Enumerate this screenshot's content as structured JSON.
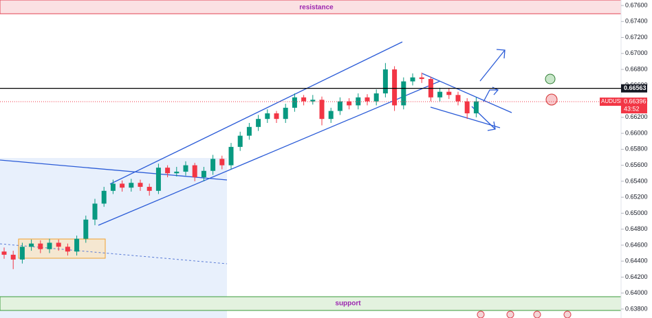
{
  "chart_data": {
    "type": "candlestick",
    "symbol": "AUDUSD",
    "countdown": "43:52",
    "resistance_label": "resistance",
    "support_label": "support",
    "reference_price": 0.66563,
    "last_price": 0.66396,
    "up_color": "#089981",
    "down_color": "#f23645",
    "ylim": [
      0.63688,
      0.67669
    ],
    "yticks": [
      {
        "value": 0.676,
        "label": "0.67600"
      },
      {
        "value": 0.674,
        "label": "0.67400"
      },
      {
        "value": 0.672,
        "label": "0.67200"
      },
      {
        "value": 0.67,
        "label": "0.67000"
      },
      {
        "value": 0.668,
        "label": "0.66800"
      },
      {
        "value": 0.666,
        "label": "0.66600"
      },
      {
        "value": 0.664,
        "label": "0.66400"
      },
      {
        "value": 0.662,
        "label": "0.66200"
      },
      {
        "value": 0.66,
        "label": "0.66000"
      },
      {
        "value": 0.658,
        "label": "0.65800"
      },
      {
        "value": 0.656,
        "label": "0.65600"
      },
      {
        "value": 0.654,
        "label": "0.65400"
      },
      {
        "value": 0.652,
        "label": "0.65200"
      },
      {
        "value": 0.65,
        "label": "0.65000"
      },
      {
        "value": 0.648,
        "label": "0.64800"
      },
      {
        "value": 0.646,
        "label": "0.64600"
      },
      {
        "value": 0.644,
        "label": "0.64400"
      },
      {
        "value": 0.642,
        "label": "0.64200"
      },
      {
        "value": 0.64,
        "label": "0.64000"
      },
      {
        "value": 0.638,
        "label": "0.63800"
      }
    ],
    "open": [
      0.6452,
      0.6448,
      0.6442,
      0.6458,
      0.6462,
      0.6455,
      0.6463,
      0.6458,
      0.6452,
      0.6468,
      0.6492,
      0.6512,
      0.6528,
      0.6537,
      0.6532,
      0.6538,
      0.6533,
      0.6528,
      0.6557,
      0.655,
      0.6552,
      0.656,
      0.6545,
      0.6553,
      0.6568,
      0.656,
      0.6583,
      0.6597,
      0.6608,
      0.6618,
      0.6625,
      0.6618,
      0.6632,
      0.6645,
      0.664,
      0.6642,
      0.6618,
      0.6628,
      0.664,
      0.6635,
      0.6645,
      0.664,
      0.665,
      0.668,
      0.6635,
      0.6665,
      0.667,
      0.6668,
      0.6645,
      0.6652,
      0.6648,
      0.664,
      0.6625
    ],
    "high": [
      0.6457,
      0.6453,
      0.6463,
      0.6467,
      0.6466,
      0.6468,
      0.6467,
      0.6462,
      0.6472,
      0.6497,
      0.6518,
      0.6533,
      0.6542,
      0.6541,
      0.6543,
      0.6542,
      0.6537,
      0.6562,
      0.656,
      0.6558,
      0.6565,
      0.6563,
      0.6558,
      0.6573,
      0.6572,
      0.6588,
      0.6602,
      0.6613,
      0.6623,
      0.663,
      0.6628,
      0.6637,
      0.665,
      0.6648,
      0.6648,
      0.6646,
      0.6632,
      0.6645,
      0.6644,
      0.665,
      0.6649,
      0.6655,
      0.6688,
      0.6684,
      0.667,
      0.6675,
      0.6676,
      0.6671,
      0.6657,
      0.6656,
      0.6652,
      0.6644,
      0.6645
    ],
    "low": [
      0.6443,
      0.643,
      0.6437,
      0.6453,
      0.645,
      0.645,
      0.6453,
      0.6447,
      0.6447,
      0.6463,
      0.6485,
      0.6508,
      0.6524,
      0.6527,
      0.6527,
      0.6528,
      0.6522,
      0.6524,
      0.6545,
      0.6546,
      0.6547,
      0.654,
      0.654,
      0.6548,
      0.6555,
      0.6555,
      0.6578,
      0.6592,
      0.6603,
      0.6613,
      0.6613,
      0.6613,
      0.6627,
      0.6635,
      0.6636,
      0.661,
      0.6613,
      0.6623,
      0.663,
      0.663,
      0.6635,
      0.6635,
      0.6645,
      0.6628,
      0.663,
      0.666,
      0.6663,
      0.664,
      0.664,
      0.6643,
      0.6635,
      0.6618,
      0.662
    ],
    "close": [
      0.6448,
      0.6442,
      0.6458,
      0.6462,
      0.6455,
      0.6463,
      0.6458,
      0.6452,
      0.6468,
      0.6492,
      0.6512,
      0.6528,
      0.6537,
      0.6532,
      0.6538,
      0.6533,
      0.6528,
      0.6557,
      0.655,
      0.6552,
      0.656,
      0.6545,
      0.6553,
      0.6568,
      0.656,
      0.6583,
      0.6597,
      0.6608,
      0.6618,
      0.6625,
      0.6618,
      0.6632,
      0.6645,
      0.664,
      0.6642,
      0.6618,
      0.6628,
      0.664,
      0.6635,
      0.6645,
      0.664,
      0.665,
      0.668,
      0.6635,
      0.6665,
      0.667,
      0.6668,
      0.6645,
      0.6652,
      0.6648,
      0.664,
      0.6625,
      0.664
    ]
  }
}
